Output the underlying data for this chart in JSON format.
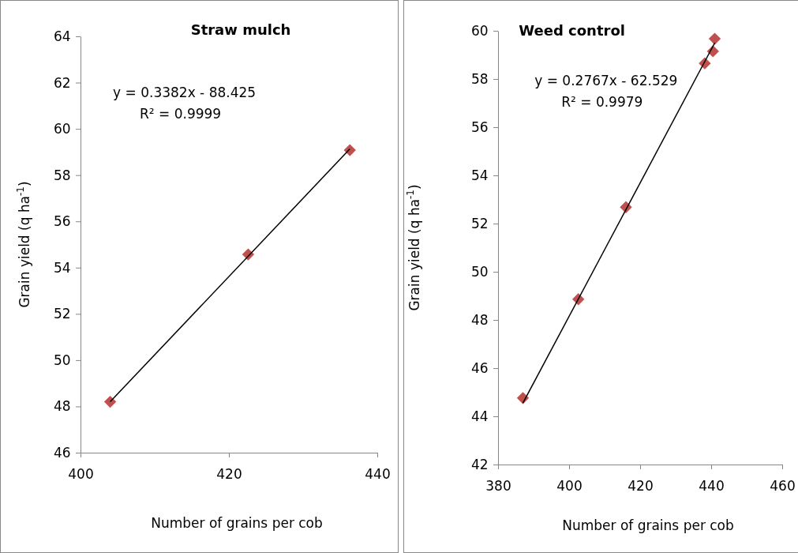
{
  "chart_data": [
    {
      "type": "scatter",
      "title": "Straw mulch",
      "xlabel": "Number of grains per cob",
      "ylabel": "Grain yield (q ha$^{-1}$)",
      "xlim": [
        400,
        440
      ],
      "xticks": [
        400,
        420,
        440
      ],
      "ylim": [
        46,
        64
      ],
      "yticks": [
        46,
        48,
        50,
        52,
        54,
        56,
        58,
        60,
        62,
        64
      ],
      "grid": false,
      "marker": "diamond",
      "series": [
        {
          "color": "#c0504d",
          "x": [
            404.0,
            422.6,
            436.3
          ],
          "values": [
            48.2,
            54.57,
            59.08
          ]
        },
        {
          "type": "line",
          "color": "#000000",
          "x": [
            404.0,
            436.3
          ],
          "values": [
            48.2,
            59.13
          ],
          "marker": "none"
        }
      ],
      "annotations": [
        "y = 0.3382x - 88.425",
        "R² = 0.9999"
      ]
    },
    {
      "type": "scatter",
      "title": "Weed control",
      "xlabel": "Number of grains per cob",
      "ylabel": "Grain yield (q ha$^{-1}$)",
      "xlim": [
        380,
        460
      ],
      "xticks": [
        380,
        400,
        420,
        440,
        460
      ],
      "ylim": [
        42,
        60
      ],
      "yticks": [
        42,
        44,
        46,
        48,
        50,
        52,
        54,
        56,
        58,
        60
      ],
      "grid": false,
      "marker": "diamond",
      "series": [
        {
          "color": "#c0504d",
          "x": [
            387.0,
            402.6,
            416.0,
            438.2,
            440.5,
            441.0
          ],
          "values": [
            44.76,
            48.86,
            52.68,
            58.65,
            59.15,
            59.67
          ]
        },
        {
          "type": "line",
          "color": "#000000",
          "x": [
            387.0,
            441.0
          ],
          "values": [
            44.55,
            59.5
          ],
          "marker": "none"
        }
      ],
      "annotations": [
        "y = 0.2767x - 62.529",
        "R² = 0.9979"
      ]
    }
  ]
}
